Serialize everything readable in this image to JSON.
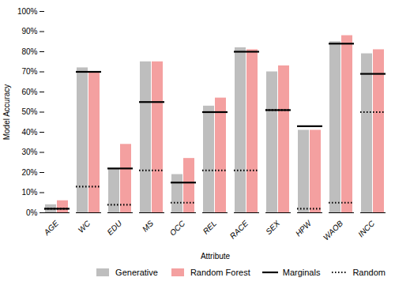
{
  "chart_data": {
    "type": "bar",
    "xlabel": "Attribute",
    "ylabel": "Model Accuracy",
    "categories": [
      "AGE",
      "WC",
      "EDU",
      "MS",
      "OCC",
      "REL",
      "RACE",
      "SEX",
      "HPW",
      "WAOB",
      "INCC"
    ],
    "series": [
      {
        "name": "Generative",
        "type": "bar",
        "color": "#bebebe",
        "values": [
          4,
          72,
          22,
          75,
          19,
          53,
          82,
          70,
          41,
          85,
          79
        ]
      },
      {
        "name": "Random Forest",
        "type": "bar",
        "color": "#f4a0a0",
        "values": [
          6,
          70,
          34,
          75,
          27,
          57,
          81,
          73,
          41,
          88,
          81
        ]
      },
      {
        "name": "Marginals",
        "type": "tick",
        "color": "#000000",
        "line_style": "solid",
        "values": [
          2,
          70,
          22,
          55,
          15,
          50,
          80,
          51,
          43,
          84,
          69
        ]
      },
      {
        "name": "Random",
        "type": "tick",
        "color": "#000000",
        "line_style": "dotted",
        "values": [
          2,
          13,
          4,
          21,
          5,
          21,
          21,
          51,
          2,
          5,
          50
        ]
      }
    ],
    "ylim": [
      0,
      100
    ],
    "yticks": [
      {
        "value": 0,
        "label": "0%"
      },
      {
        "value": 10,
        "label": "10%"
      },
      {
        "value": 20,
        "label": "20%"
      },
      {
        "value": 30,
        "label": "30%"
      },
      {
        "value": 40,
        "label": "40%"
      },
      {
        "value": 50,
        "label": "50%"
      },
      {
        "value": 60,
        "label": "60%"
      },
      {
        "value": 70,
        "label": "70%"
      },
      {
        "value": 80,
        "label": "80%"
      },
      {
        "value": 90,
        "label": "90%"
      },
      {
        "value": 100,
        "label": "100%"
      }
    ],
    "grid": false,
    "legend": "lower right"
  }
}
